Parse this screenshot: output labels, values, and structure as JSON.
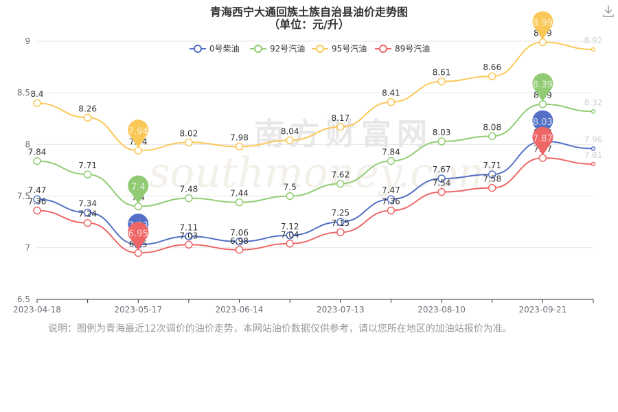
{
  "chart_data": {
    "type": "line",
    "title": "青海西宁大通回族土族自治县油价走势图",
    "subtitle": "（单位：元/升）",
    "x": [
      "2023-04-18",
      "",
      "2023-05-17",
      "",
      "2023-06-14",
      "",
      "2023-07-13",
      "",
      "2023-08-10",
      "",
      "2023-09-21",
      ""
    ],
    "x_tick_labels": [
      "2023-04-18",
      "2023-05-17",
      "2023-06-14",
      "2023-07-13",
      "2023-08-10",
      "2023-09-21"
    ],
    "ylim": [
      6.5,
      9
    ],
    "yticks": [
      6.5,
      7,
      7.5,
      8,
      8.5,
      9
    ],
    "grid": true,
    "legend": "top-center",
    "series": [
      {
        "name": "0号柴油",
        "color": "#5470c6",
        "values": [
          7.47,
          7.34,
          7.03,
          7.11,
          7.06,
          7.12,
          7.25,
          7.47,
          7.67,
          7.71,
          8.03,
          7.96
        ],
        "max_index": 10,
        "min_index": 2
      },
      {
        "name": "92号汽油",
        "color": "#91cc75",
        "values": [
          7.84,
          7.71,
          7.4,
          7.48,
          7.44,
          7.5,
          7.62,
          7.84,
          8.03,
          8.08,
          8.39,
          8.32
        ],
        "max_index": 10,
        "min_index": 2
      },
      {
        "name": "95号汽油",
        "color": "#fac858",
        "values": [
          8.4,
          8.26,
          7.94,
          8.02,
          7.98,
          8.04,
          8.17,
          8.41,
          8.61,
          8.66,
          8.99,
          8.92
        ],
        "max_index": 10,
        "min_index": 2
      },
      {
        "name": "89号汽油",
        "color": "#ee6666",
        "values": [
          7.36,
          7.24,
          6.95,
          7.03,
          6.98,
          7.04,
          7.15,
          7.36,
          7.54,
          7.58,
          7.87,
          7.81
        ],
        "max_index": 10,
        "min_index": 2
      }
    ],
    "watermark": {
      "cn": "南方财富网",
      "en": "southmoney.com"
    }
  },
  "note": "说明：图例为青海最近12次调价的油价走势，本网站油价数据仅供参考，请以您所在地区的加油站报价为准。",
  "icons": {
    "download": "download-icon"
  }
}
